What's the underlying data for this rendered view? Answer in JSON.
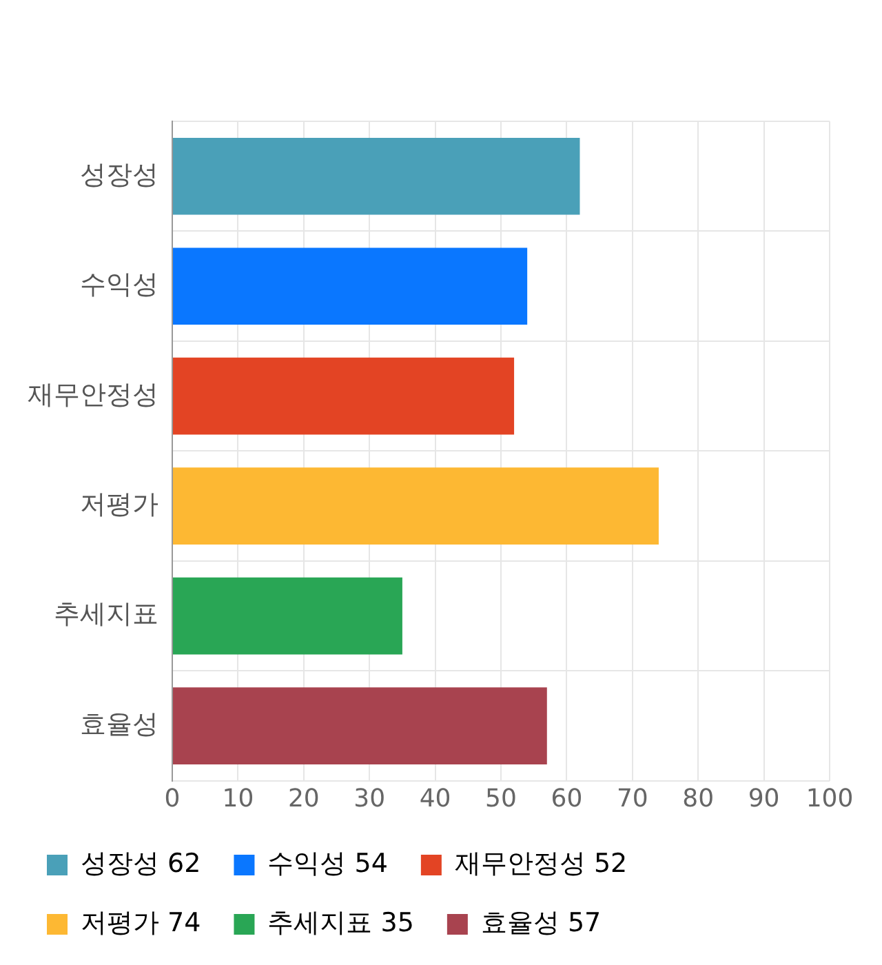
{
  "chart_data": {
    "type": "bar",
    "orientation": "horizontal",
    "categories": [
      "성장성",
      "수익성",
      "재무안정성",
      "저평가",
      "추세지표",
      "효율성"
    ],
    "series": [
      {
        "name": "성장성 62",
        "color": "#4aa0b8",
        "values": [
          62,
          null,
          null,
          null,
          null,
          null
        ]
      },
      {
        "name": "수익성 54",
        "color": "#0a77ff",
        "values": [
          null,
          54,
          null,
          null,
          null,
          null
        ]
      },
      {
        "name": "재무안정성 52",
        "color": "#e34424",
        "values": [
          null,
          null,
          52,
          null,
          null,
          null
        ]
      },
      {
        "name": "저평가 74",
        "color": "#fdb833",
        "values": [
          null,
          null,
          null,
          74,
          null,
          null
        ]
      },
      {
        "name": "추세지표 35",
        "color": "#29a655",
        "values": [
          null,
          null,
          null,
          null,
          35,
          null
        ]
      },
      {
        "name": "효율성 57",
        "color": "#a8434f",
        "values": [
          null,
          null,
          null,
          null,
          null,
          57
        ]
      }
    ],
    "xlim": [
      0,
      100
    ],
    "xticks": [
      0,
      10,
      20,
      30,
      40,
      50,
      60,
      70,
      80,
      90,
      100
    ],
    "grid": true,
    "legend": "bottom"
  }
}
